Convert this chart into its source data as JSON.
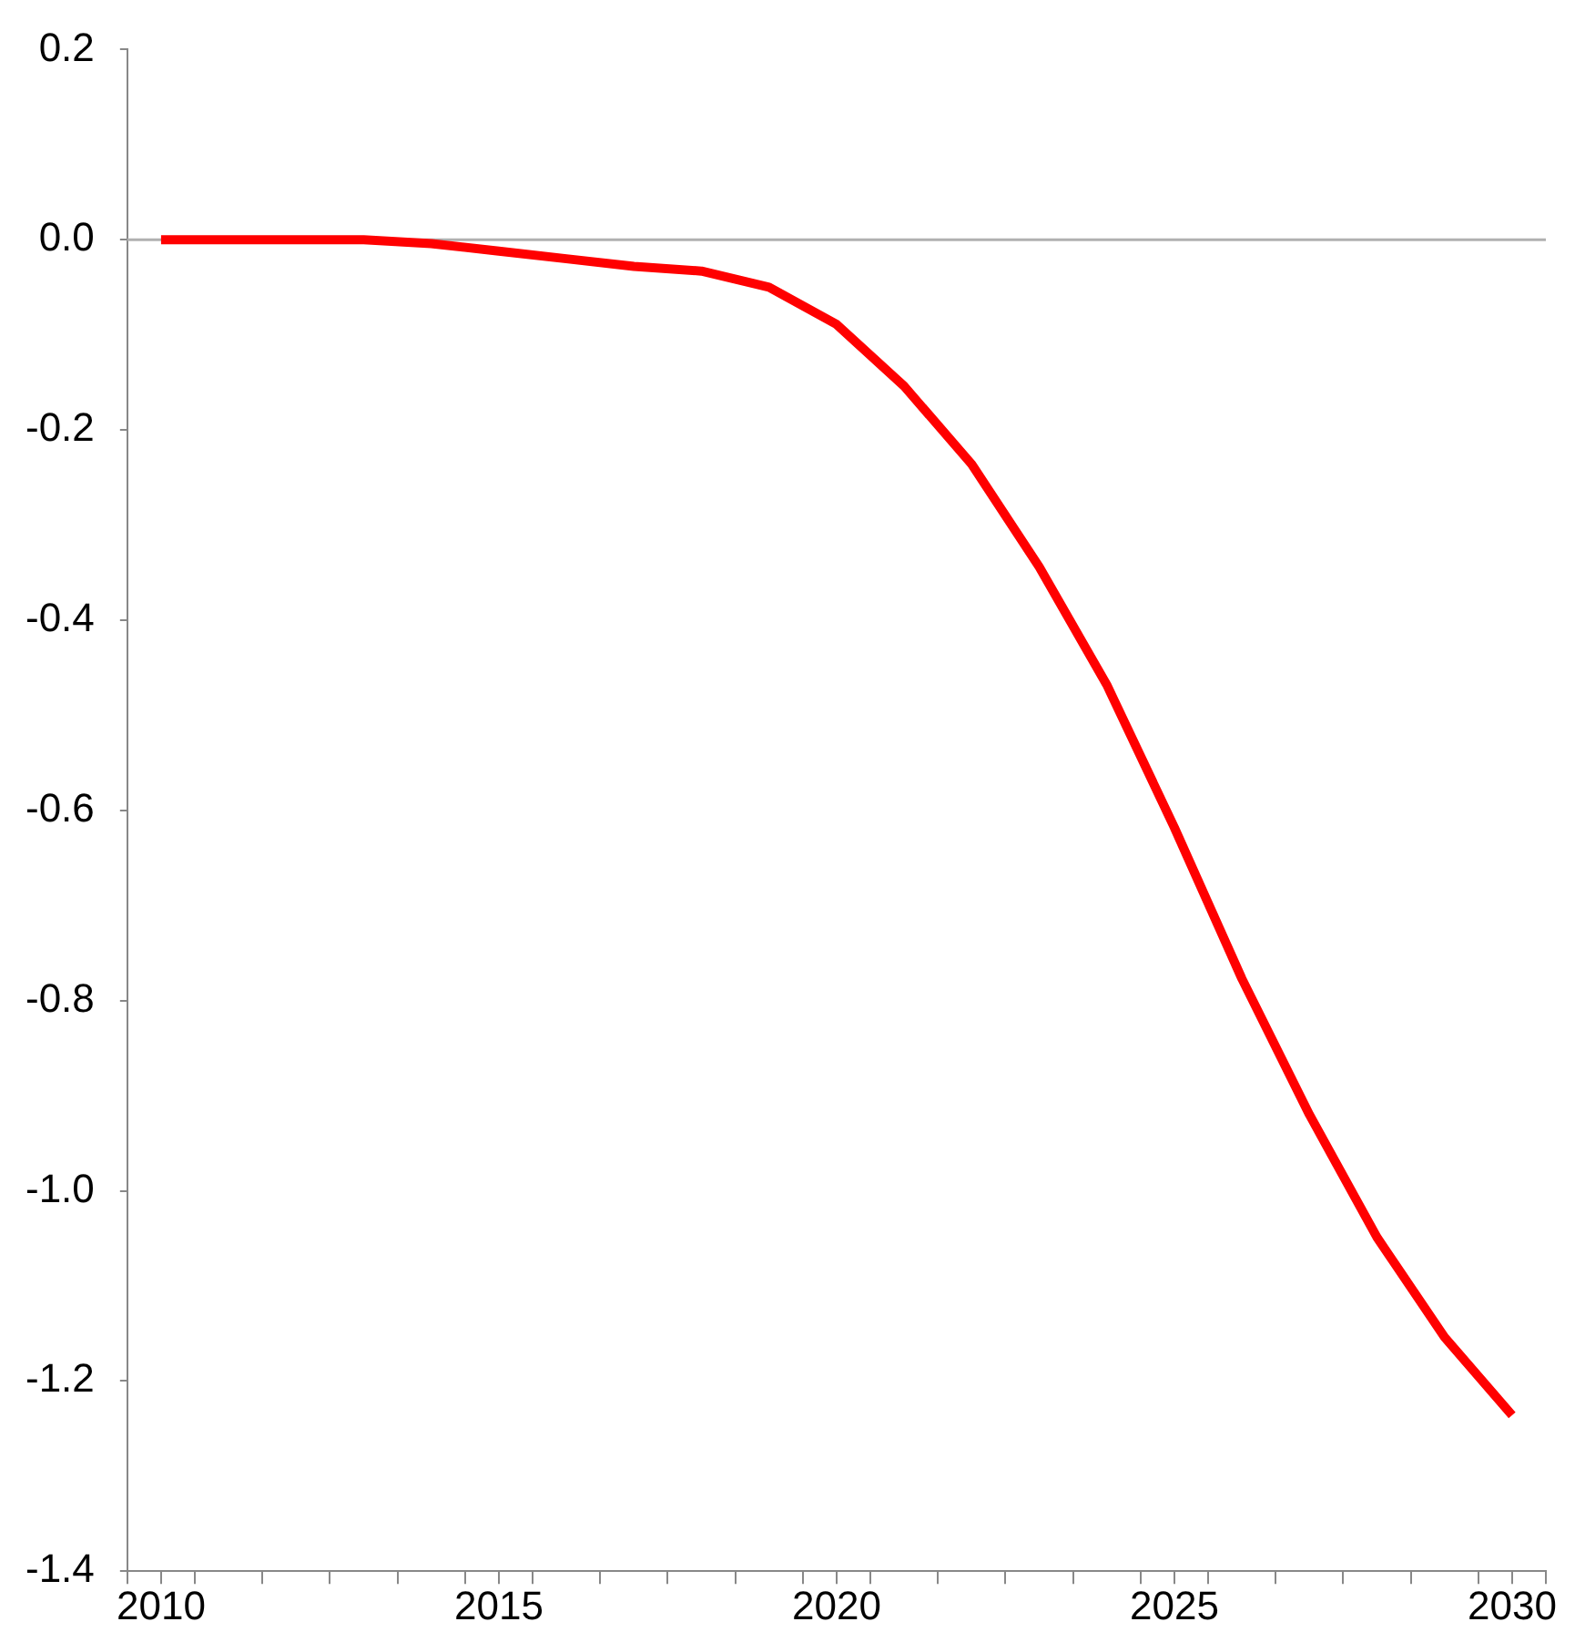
{
  "chart_data": {
    "type": "line",
    "x": [
      2010,
      2011,
      2012,
      2013,
      2014,
      2015,
      2016,
      2017,
      2018,
      2019,
      2020,
      2021,
      2022,
      2023,
      2024,
      2025,
      2026,
      2027,
      2028,
      2029,
      2030
    ],
    "series": [
      {
        "color": "#ff0000",
        "values": [
          0,
          0,
          0,
          0,
          -0.004,
          -0.012,
          -0.02,
          -0.028,
          -0.033,
          -0.05,
          -0.089,
          -0.154,
          -0.236,
          -0.344,
          -0.468,
          -0.618,
          -0.777,
          -0.92,
          -1.049,
          -1.154,
          -1.236
        ]
      }
    ],
    "xlim": [
      2009.5,
      2030.5
    ],
    "xticks": [
      {
        "value": 2009.5,
        "label": null
      },
      {
        "value": 2010,
        "label": "2010"
      },
      {
        "value": 2010.5,
        "label": null
      },
      {
        "value": 2011.5,
        "label": null
      },
      {
        "value": 2012.5,
        "label": null
      },
      {
        "value": 2013.5,
        "label": null
      },
      {
        "value": 2014.5,
        "label": null
      },
      {
        "value": 2015,
        "label": "2015"
      },
      {
        "value": 2015.5,
        "label": null
      },
      {
        "value": 2016.5,
        "label": null
      },
      {
        "value": 2017.5,
        "label": null
      },
      {
        "value": 2018.5,
        "label": null
      },
      {
        "value": 2019.5,
        "label": null
      },
      {
        "value": 2020,
        "label": "2020"
      },
      {
        "value": 2020.5,
        "label": null
      },
      {
        "value": 2021.5,
        "label": null
      },
      {
        "value": 2022.5,
        "label": null
      },
      {
        "value": 2023.5,
        "label": null
      },
      {
        "value": 2024.5,
        "label": null
      },
      {
        "value": 2025,
        "label": "2025"
      },
      {
        "value": 2025.5,
        "label": null
      },
      {
        "value": 2026.5,
        "label": null
      },
      {
        "value": 2027.5,
        "label": null
      },
      {
        "value": 2028.5,
        "label": null
      },
      {
        "value": 2029.5,
        "label": null
      },
      {
        "value": 2030,
        "label": "2030"
      },
      {
        "value": 2030.5,
        "label": null
      }
    ],
    "ylim": [
      -1.4,
      0.2
    ],
    "yticks": [
      0.2,
      {
        "value": 0,
        "label": "0.0"
      },
      -0.2,
      -0.4,
      -0.6,
      -0.8,
      {
        "value": -1,
        "label": "-1.0"
      },
      -1.2,
      -1.4
    ],
    "ref_lines": [
      {
        "axis": "y",
        "value": 0,
        "color": "#b0b0b0"
      }
    ],
    "grid": false,
    "legend": false,
    "marker": "none",
    "line_style": "solid"
  }
}
